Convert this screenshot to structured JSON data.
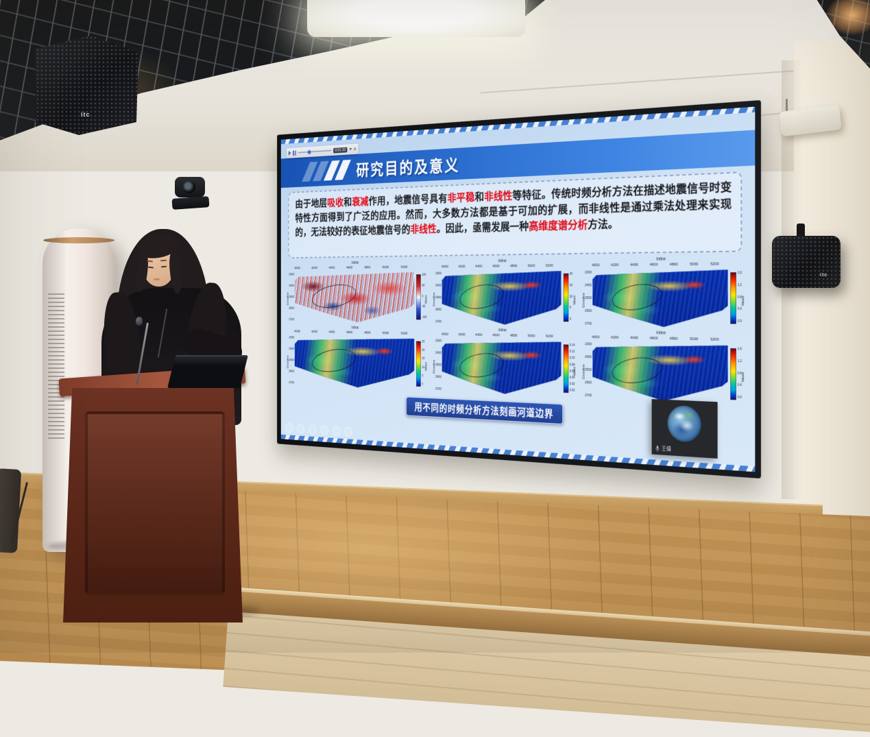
{
  "colors": {
    "slide_header_blue": "#2c6fd0",
    "slide_background": "#cfe2f5",
    "highlight_red": "#e30613",
    "caption_background": "#1f3f92",
    "screen_bezel": "#15171a",
    "stage_wood": "#c39557",
    "podium_wood": "#5a2718"
  },
  "screen": {
    "player": {
      "time": "0:01:33",
      "icons": [
        "share-icon",
        "pause-icon",
        "scrubber-handle",
        "caret-down-icon",
        "close-icon"
      ],
      "close_label": "×"
    },
    "slide": {
      "title": "研究目的及意义",
      "body_segments": [
        {
          "text": "由于地层",
          "highlight": false
        },
        {
          "text": "吸收",
          "highlight": true
        },
        {
          "text": "和",
          "highlight": false
        },
        {
          "text": "衰减",
          "highlight": true
        },
        {
          "text": "作用，地震信号具有",
          "highlight": false
        },
        {
          "text": "非平稳",
          "highlight": true
        },
        {
          "text": "和",
          "highlight": false
        },
        {
          "text": "非线性",
          "highlight": true
        },
        {
          "text": "等特征。传统时频分析方法在描述地震信号时变特性方面得到了广泛的应用。然而，大多数方法都是基于可加的扩展，而非线性是通过乘法处理来实现的，无法较好的表征地震信号的",
          "highlight": false
        },
        {
          "text": "非线性",
          "highlight": true
        },
        {
          "text": "。因此，亟需发展一种",
          "highlight": false
        },
        {
          "text": "高维度谱分析",
          "highlight": true
        },
        {
          "text": "方法。",
          "highlight": false
        }
      ],
      "figures": [
        {
          "position": "top-left",
          "palette": "redblue",
          "x_label": "Inline",
          "x_ticks": [
            "4000",
            "4200",
            "4400",
            "4600",
            "4800",
            "5000",
            "5200"
          ],
          "y_label": "Crossline",
          "y_ticks": [
            "2300",
            "2400",
            "2500",
            "2600",
            "2700"
          ],
          "colorbar_label": "Values",
          "colorbar_ticks": [
            "100",
            "50",
            "0",
            "-50",
            "-100"
          ],
          "ellipse_annotation": true
        },
        {
          "position": "top-middle",
          "palette": "jet",
          "x_label": "Inline",
          "x_ticks": [
            "4000",
            "4200",
            "4400",
            "4600",
            "4800",
            "5000",
            "5200"
          ],
          "y_label": "Crossline",
          "y_ticks": [
            "2300",
            "2400",
            "2500",
            "2600",
            "2700"
          ],
          "colorbar_label": "Values",
          "colorbar_ticks": [
            "20",
            "15",
            "10",
            "5",
            "0"
          ],
          "ellipse_annotation": true
        },
        {
          "position": "top-right",
          "palette": "jet",
          "x_label": "Inline",
          "x_ticks": [
            "4000",
            "4200",
            "4400",
            "4600",
            "4800",
            "5000",
            "5200"
          ],
          "y_label": "Crossline",
          "y_ticks": [
            "2300",
            "2400",
            "2500",
            "2600",
            "2700"
          ],
          "colorbar_label": "Values",
          "colorbar_ticks": [
            "1.6",
            "1.2",
            "0.8",
            "0.4",
            "0.0"
          ],
          "ellipse_annotation": true
        },
        {
          "position": "bottom-left",
          "palette": "jet",
          "x_label": "Inline",
          "x_ticks": [
            "4000",
            "4200",
            "4400",
            "4600",
            "4800",
            "5000",
            "5200"
          ],
          "y_label": "Crossline",
          "y_ticks": [
            "2300",
            "2400",
            "2500",
            "2600",
            "2700"
          ],
          "colorbar_label": "Values",
          "colorbar_ticks": [
            "25",
            "20",
            "15",
            "10",
            "5",
            "0"
          ],
          "ellipse_annotation": true
        },
        {
          "position": "bottom-middle",
          "palette": "jet",
          "x_label": "Inline",
          "x_ticks": [
            "4000",
            "4200",
            "4400",
            "4600",
            "4800",
            "5000",
            "5200"
          ],
          "y_label": "Crossline",
          "y_ticks": [
            "2300",
            "2400",
            "2500",
            "2600",
            "2700"
          ],
          "colorbar_label": "Values",
          "colorbar_ticks": [
            "0.14",
            "0.12",
            "0.10",
            "0.08",
            "0.06",
            "0.04",
            "0.02",
            "0.00"
          ],
          "ellipse_annotation": true
        },
        {
          "position": "bottom-right",
          "palette": "jet",
          "x_label": "Inline",
          "x_ticks": [
            "4000",
            "4200",
            "4400",
            "4600",
            "4800",
            "5000",
            "5200"
          ],
          "y_label": "Crossline",
          "y_ticks": [
            "2300",
            "2400",
            "2500",
            "2600",
            "2700"
          ],
          "colorbar_label": "Values",
          "colorbar_ticks": [
            "1.6",
            "1.2",
            "0.8",
            "0.4",
            "0.0"
          ],
          "ellipse_annotation": true
        }
      ],
      "caption": "用不同的时频分析方法刻画河道边界"
    },
    "webcam": {
      "participant_name": "王倩",
      "icons": [
        "microphone-icon",
        "earth-avatar"
      ]
    }
  },
  "room": {
    "speaker_brand": "itc"
  }
}
